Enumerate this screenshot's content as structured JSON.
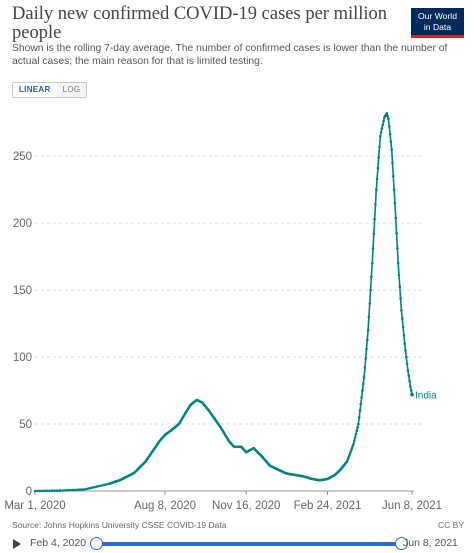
{
  "header": {
    "title": "Daily new confirmed COVID-19 cases per million people",
    "subtitle": "Shown is the rolling 7-day average. The number of confirmed cases is lower than the number of actual cases; the main reason for that is limited testing.",
    "logo_line1": "Our World",
    "logo_line2": "in Data",
    "logo_color": "#002b5c",
    "logo_accent": "#ce261e"
  },
  "scale_toggle": {
    "linear_label": "LINEAR",
    "log_label": "LOG",
    "selected": "LINEAR"
  },
  "chart_data": {
    "type": "line",
    "title": "Daily new confirmed COVID-19 cases per million people",
    "xlabel": "",
    "ylabel": "",
    "x_ticks": [
      "Mar 1, 2020",
      "Aug 8, 2020",
      "Nov 16, 2020",
      "Feb 24, 2021",
      "Jun 8, 2021"
    ],
    "y_ticks": [
      0,
      50,
      100,
      150,
      200,
      250
    ],
    "xlim": [
      "2020-03-01",
      "2021-06-08"
    ],
    "ylim": [
      0,
      280
    ],
    "grid": "horizontal-dashed",
    "series": [
      {
        "name": "India",
        "color": "#00847e",
        "points": [
          [
            "2020-03-01",
            0
          ],
          [
            "2020-04-01",
            0.3
          ],
          [
            "2020-05-01",
            1.2
          ],
          [
            "2020-06-01",
            5.5
          ],
          [
            "2020-06-15",
            8.5
          ],
          [
            "2020-07-01",
            13.5
          ],
          [
            "2020-07-15",
            22
          ],
          [
            "2020-08-01",
            37
          ],
          [
            "2020-08-08",
            42
          ],
          [
            "2020-08-15",
            45
          ],
          [
            "2020-08-25",
            50
          ],
          [
            "2020-09-01",
            57
          ],
          [
            "2020-09-08",
            64
          ],
          [
            "2020-09-16",
            68
          ],
          [
            "2020-09-23",
            66
          ],
          [
            "2020-10-01",
            60
          ],
          [
            "2020-10-15",
            48
          ],
          [
            "2020-10-26",
            37
          ],
          [
            "2020-11-01",
            33
          ],
          [
            "2020-11-10",
            33
          ],
          [
            "2020-11-16",
            29
          ],
          [
            "2020-11-25",
            32
          ],
          [
            "2020-12-05",
            26
          ],
          [
            "2020-12-15",
            19
          ],
          [
            "2020-12-25",
            16
          ],
          [
            "2021-01-05",
            13
          ],
          [
            "2021-01-15",
            12
          ],
          [
            "2021-01-25",
            11
          ],
          [
            "2021-02-05",
            9
          ],
          [
            "2021-02-15",
            8
          ],
          [
            "2021-02-24",
            9
          ],
          [
            "2021-03-05",
            12
          ],
          [
            "2021-03-12",
            16
          ],
          [
            "2021-03-20",
            22
          ],
          [
            "2021-03-28",
            35
          ],
          [
            "2021-04-03",
            50
          ],
          [
            "2021-04-10",
            85
          ],
          [
            "2021-04-15",
            120
          ],
          [
            "2021-04-20",
            170
          ],
          [
            "2021-04-25",
            225
          ],
          [
            "2021-04-30",
            265
          ],
          [
            "2021-05-05",
            279
          ],
          [
            "2021-05-08",
            282
          ],
          [
            "2021-05-10",
            278
          ],
          [
            "2021-05-14",
            255
          ],
          [
            "2021-05-18",
            215
          ],
          [
            "2021-05-22",
            170
          ],
          [
            "2021-05-26",
            135
          ],
          [
            "2021-05-30",
            110
          ],
          [
            "2021-06-03",
            90
          ],
          [
            "2021-06-06",
            78
          ],
          [
            "2021-06-08",
            72
          ]
        ],
        "end_label": "India"
      }
    ]
  },
  "footer": {
    "source": "Source: Johns Hopkins University CSSE COVID-19 Data",
    "license": "CC BY"
  },
  "timeline": {
    "start_label": "Feb 4, 2020",
    "end_label": "Jun 8, 2021",
    "start_position": 0.0,
    "end_position": 1.0
  }
}
